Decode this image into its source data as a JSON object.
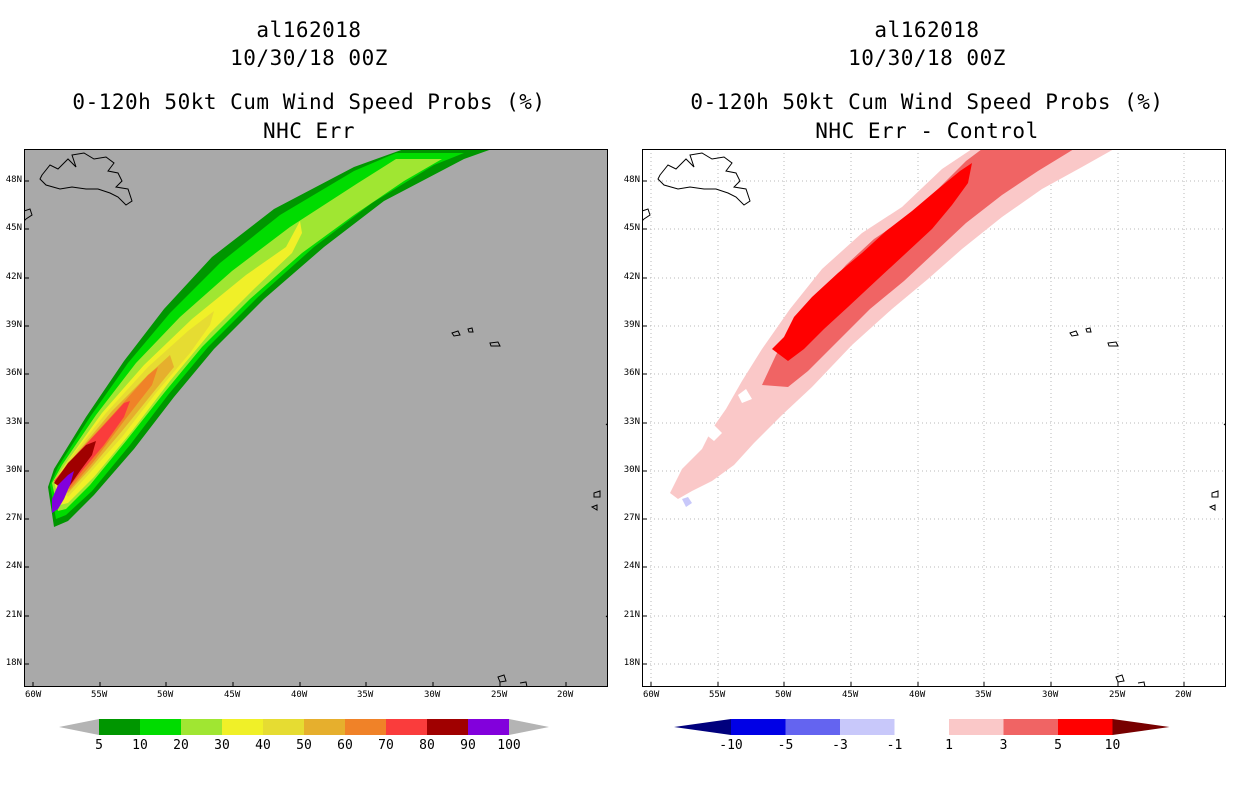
{
  "colors": {
    "ocean_left": "#a9a9a9",
    "ocean_right": "#ffffff",
    "coast": "#000000",
    "grid": "#b8b8b8"
  },
  "axes": {
    "lat_labels": [
      "48N",
      "45N",
      "42N",
      "39N",
      "36N",
      "33N",
      "30N",
      "27N",
      "24N",
      "21N",
      "18N"
    ],
    "lon_labels": [
      "60W",
      "55W",
      "50W",
      "45W",
      "40W",
      "35W",
      "30W",
      "25W",
      "20W"
    ]
  },
  "panels": [
    {
      "title_line1": "al162018",
      "title_line2": "10/30/18 00Z",
      "title_line3": "0-120h 50kt Cum Wind Speed Probs (%)",
      "title_line4": "NHC Err",
      "colorbar": {
        "levels": [
          "5",
          "10",
          "20",
          "30",
          "40",
          "50",
          "60",
          "70",
          "80",
          "90",
          "100"
        ],
        "colors": [
          "#009600",
          "#00dc00",
          "#a0e632",
          "#f0f028",
          "#e6dc32",
          "#e6af2d",
          "#f08228",
          "#fa3c3c",
          "#a00000",
          "#8200dc"
        ],
        "end_low": "#b4b4b4",
        "end_high": "#b4b4b4"
      }
    },
    {
      "title_line1": "al162018",
      "title_line2": "10/30/18 00Z",
      "title_line3": "0-120h 50kt Cum Wind Speed Probs (%)",
      "title_line4": "NHC Err - Control",
      "colorbar": {
        "levels": [
          "-10",
          "-5",
          "-3",
          "-1",
          "1",
          "3",
          "5",
          "10"
        ],
        "colors": [
          "#0000e6",
          "#6464f0",
          "#c8c8fa",
          "#ffffff",
          "#fac8c8",
          "#f06464",
          "#ff0000"
        ],
        "end_low": "#00007d",
        "end_high": "#780000"
      }
    }
  ]
}
